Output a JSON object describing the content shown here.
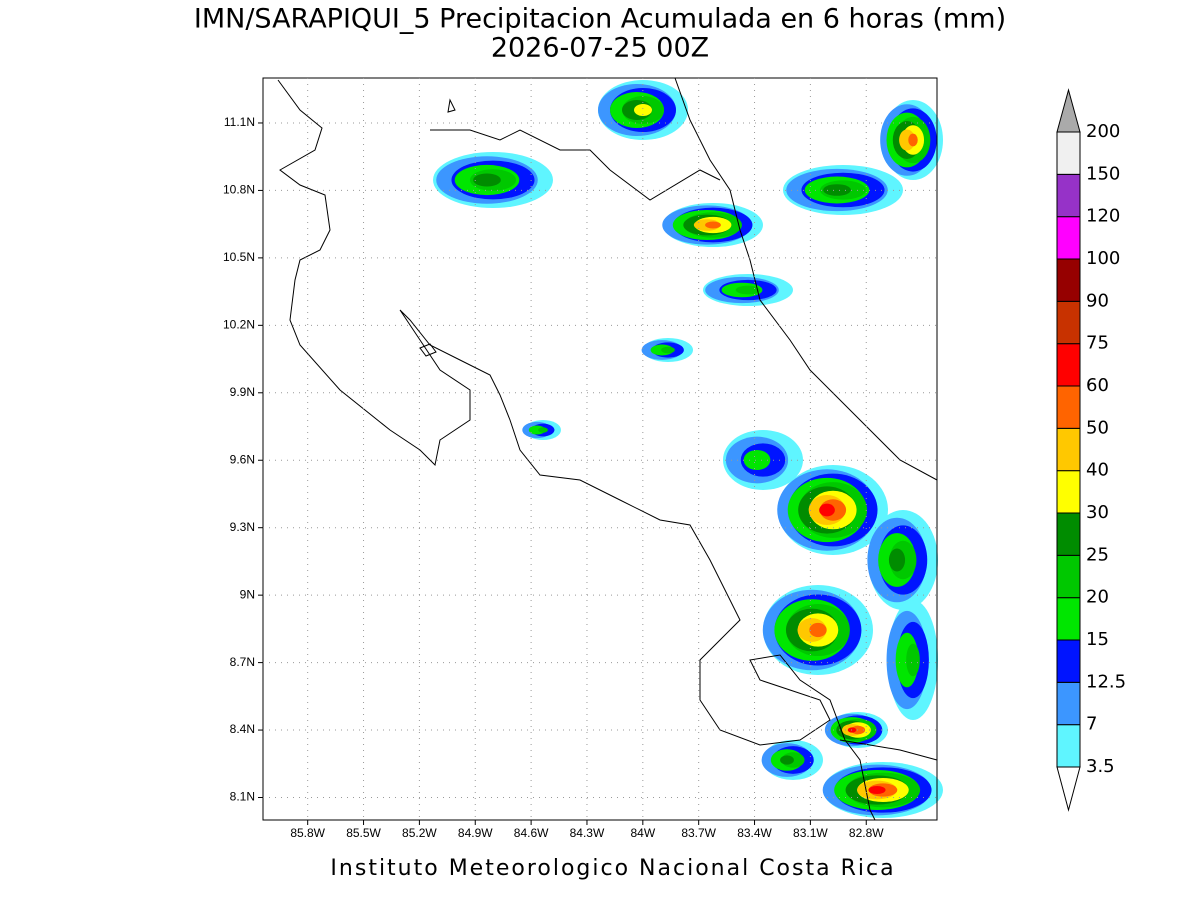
{
  "title": "IMN/SARAPIQUI_5 Precipitacion Acumulada en 6 horas (mm)",
  "subtitle": "2026-07-25 00Z",
  "footer": "Instituto Meteorologico Nacional Costa Rica",
  "map": {
    "xlim": [
      -86.04,
      -82.42
    ],
    "ylim": [
      8.0,
      11.3
    ],
    "xticks": [
      {
        "value": -85.8,
        "label": "85.8W"
      },
      {
        "value": -85.5,
        "label": "85.5W"
      },
      {
        "value": -85.2,
        "label": "85.2W"
      },
      {
        "value": -84.9,
        "label": "84.9W"
      },
      {
        "value": -84.6,
        "label": "84.6W"
      },
      {
        "value": -84.3,
        "label": "84.3W"
      },
      {
        "value": -84.0,
        "label": "84W"
      },
      {
        "value": -83.7,
        "label": "83.7W"
      },
      {
        "value": -83.4,
        "label": "83.4W"
      },
      {
        "value": -83.1,
        "label": "83.1W"
      },
      {
        "value": -82.8,
        "label": "82.8W"
      }
    ],
    "yticks": [
      {
        "value": 8.1,
        "label": "8.1N"
      },
      {
        "value": 8.4,
        "label": "8.4N"
      },
      {
        "value": 8.7,
        "label": "8.7N"
      },
      {
        "value": 9.0,
        "label": "9N"
      },
      {
        "value": 9.3,
        "label": "9.3N"
      },
      {
        "value": 9.6,
        "label": "9.6N"
      },
      {
        "value": 9.9,
        "label": "9.9N"
      },
      {
        "value": 10.2,
        "label": "10.2N"
      },
      {
        "value": 10.5,
        "label": "10.5N"
      },
      {
        "value": 10.8,
        "label": "10.8N"
      },
      {
        "value": 11.1,
        "label": "11.1N"
      }
    ],
    "grid": true
  },
  "colorbar": {
    "levels": [
      3.5,
      7,
      12.5,
      15,
      20,
      25,
      30,
      40,
      50,
      60,
      75,
      90,
      100,
      120,
      150,
      200
    ],
    "colors": [
      "#ffffff",
      "#5ff5ff",
      "#3c96ff",
      "#0014ff",
      "#00e600",
      "#00c800",
      "#008c00",
      "#ffff00",
      "#ffc800",
      "#ff6400",
      "#ff0000",
      "#c83200",
      "#960000",
      "#ff00ff",
      "#9632c8",
      "#f0f0f0",
      "#aaaaaa"
    ]
  }
}
